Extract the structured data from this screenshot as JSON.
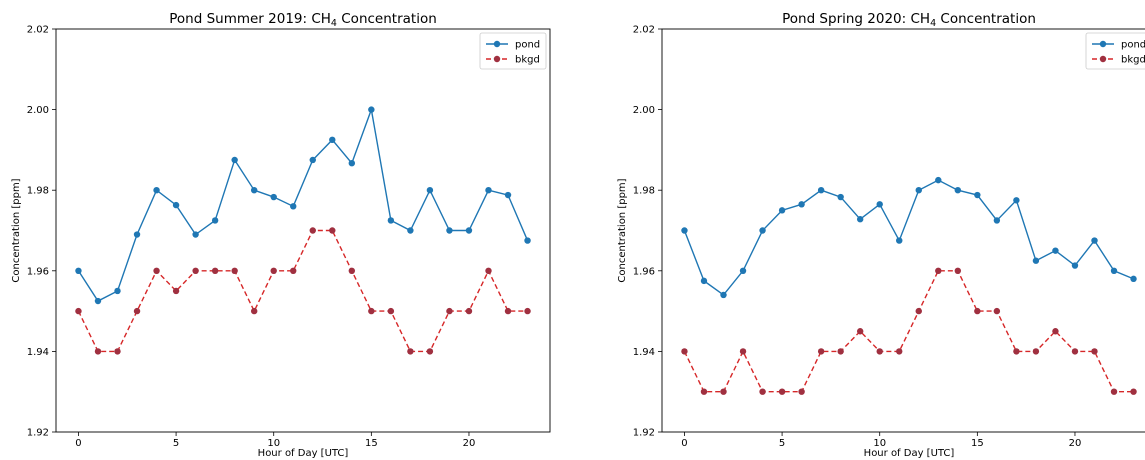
{
  "chart_data": [
    {
      "type": "line",
      "title": "Pond Summer 2019: CH₄ Concentration",
      "title_main": "Pond Summer 2019: CH",
      "title_sub": "4",
      "title_tail": " Concentration",
      "xlabel": "Hour of Day [UTC]",
      "ylabel": "Concentration [ppm]",
      "xlim": [
        -1.15,
        24.15
      ],
      "ylim": [
        1.92,
        2.02
      ],
      "xticks": [
        0,
        5,
        10,
        15,
        20
      ],
      "yticks": [
        1.92,
        1.94,
        1.96,
        1.98,
        2.0,
        2.02
      ],
      "ytick_labels": [
        "1.92",
        "1.94",
        "1.96",
        "1.98",
        "2.00",
        "2.02"
      ],
      "grid": false,
      "legend_position": "top-right",
      "x": [
        0,
        1,
        2,
        3,
        4,
        5,
        6,
        7,
        8,
        9,
        10,
        11,
        12,
        13,
        14,
        15,
        16,
        17,
        18,
        19,
        20,
        21,
        22,
        23
      ],
      "series": [
        {
          "name": "pond",
          "color": "#1f77b4",
          "style": "solid",
          "values": [
            1.96,
            1.9525,
            1.955,
            1.969,
            1.98,
            1.9763,
            1.969,
            1.9725,
            1.9875,
            1.98,
            1.9783,
            1.976,
            1.9875,
            1.9925,
            1.9867,
            2.0,
            1.9725,
            1.97,
            1.98,
            1.97,
            1.97,
            1.98,
            1.9788,
            1.9675
          ]
        },
        {
          "name": "bkgd",
          "color": "#d62728",
          "marker_color": "#a03040",
          "style": "dashed",
          "values": [
            1.95,
            1.94,
            1.94,
            1.95,
            1.96,
            1.955,
            1.96,
            1.96,
            1.96,
            1.95,
            1.96,
            1.96,
            1.97,
            1.97,
            1.96,
            1.95,
            1.95,
            1.94,
            1.94,
            1.95,
            1.95,
            1.96,
            1.95,
            1.95
          ]
        }
      ]
    },
    {
      "type": "line",
      "title": "Pond Spring 2020: CH₄ Concentration",
      "title_main": "Pond Spring 2020: CH",
      "title_sub": "4",
      "title_tail": " Concentration",
      "xlabel": "Hour of Day [UTC]",
      "ylabel": "Concentration [ppm]",
      "xlim": [
        -1.15,
        24.15
      ],
      "ylim": [
        1.92,
        2.02
      ],
      "xticks": [
        0,
        5,
        10,
        15,
        20
      ],
      "yticks": [
        1.92,
        1.94,
        1.96,
        1.98,
        2.0,
        2.02
      ],
      "ytick_labels": [
        "1.92",
        "1.94",
        "1.96",
        "1.98",
        "2.00",
        "2.02"
      ],
      "grid": false,
      "legend_position": "top-right",
      "x": [
        0,
        1,
        2,
        3,
        4,
        5,
        6,
        7,
        8,
        9,
        10,
        11,
        12,
        13,
        14,
        15,
        16,
        17,
        18,
        19,
        20,
        21,
        22,
        23
      ],
      "series": [
        {
          "name": "pond",
          "color": "#1f77b4",
          "style": "solid",
          "values": [
            1.97,
            1.9575,
            1.954,
            1.96,
            1.97,
            1.975,
            1.9765,
            1.98,
            1.9783,
            1.9728,
            1.9765,
            1.9675,
            1.98,
            1.9825,
            1.98,
            1.9788,
            1.9725,
            1.9775,
            1.9625,
            1.965,
            1.9613,
            1.9675,
            1.96,
            1.958
          ]
        },
        {
          "name": "bkgd",
          "color": "#d62728",
          "marker_color": "#a03040",
          "style": "dashed",
          "values": [
            1.94,
            1.93,
            1.93,
            1.94,
            1.93,
            1.93,
            1.93,
            1.94,
            1.94,
            1.945,
            1.94,
            1.94,
            1.95,
            1.96,
            1.96,
            1.95,
            1.95,
            1.94,
            1.94,
            1.945,
            1.94,
            1.94,
            1.93,
            1.93
          ]
        }
      ]
    }
  ]
}
